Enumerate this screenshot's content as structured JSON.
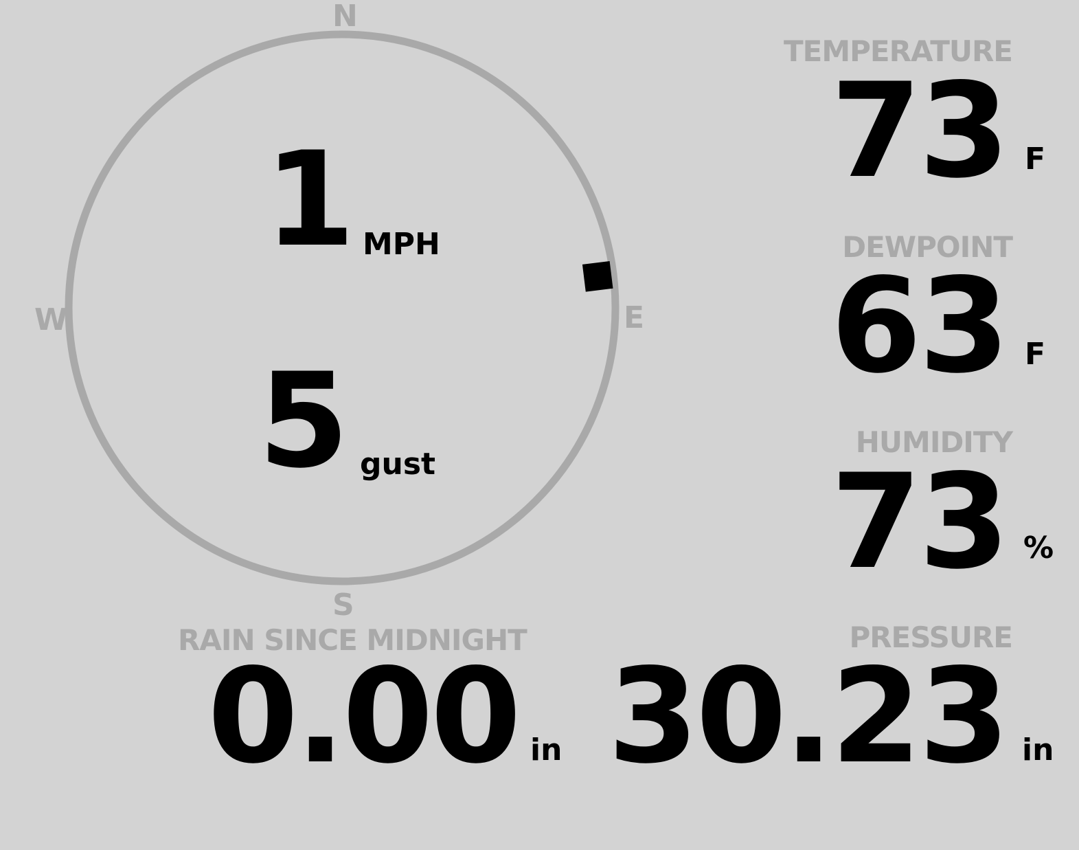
{
  "wind": {
    "speed": "1",
    "speed_unit": "MPH",
    "gust": "5",
    "gust_label": "gust",
    "direction_deg": 83,
    "compass": {
      "n": "N",
      "e": "E",
      "s": "S",
      "w": "W"
    }
  },
  "temperature": {
    "label": "TEMPERATURE",
    "value": "73",
    "unit": "F"
  },
  "dewpoint": {
    "label": "DEWPOINT",
    "value": "63",
    "unit": "F"
  },
  "humidity": {
    "label": "HUMIDITY",
    "value": "73",
    "unit": "%"
  },
  "rain": {
    "label": "RAIN SINCE MIDNIGHT",
    "value": "0.00",
    "unit": "in"
  },
  "pressure": {
    "label": "PRESSURE",
    "value": "30.23",
    "unit": "in"
  },
  "colors": {
    "background": "#d3d3d3",
    "label": "#a9a9a9",
    "value": "#000000"
  }
}
